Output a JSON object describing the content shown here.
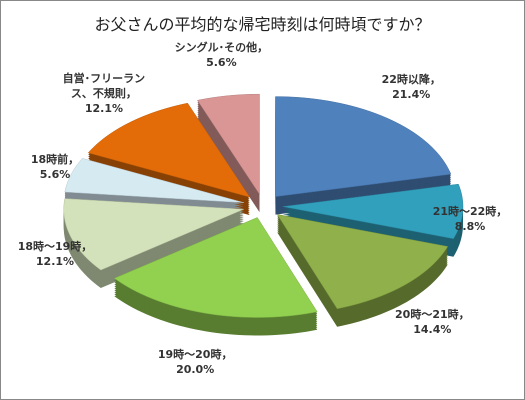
{
  "chart_data": {
    "type": "pie3d",
    "title": "お父さんの平均的な帰宅時刻は何時頃ですか？",
    "categories": [
      "22時以降，",
      "21時～22時，",
      "20時～21時，",
      "19時～20時，",
      "18時～19時，",
      "18時前，",
      "自営･フリーランス、不規則，",
      "シングル･その他，"
    ],
    "values": [
      21.4,
      8.8,
      14.4,
      20.0,
      12.1,
      5.6,
      12.1,
      5.6
    ],
    "value_labels": [
      "21.4%",
      "8.8%",
      "14.4%",
      "20.0%",
      "12.1%",
      "5.6%",
      "12.1%",
      "5.6%"
    ],
    "colors": [
      "#4f81bd",
      "#31a0bd",
      "#8fb04a",
      "#92d050",
      "#d4e2bb",
      "#d6eaf2",
      "#e36c09",
      "#d99694"
    ]
  }
}
